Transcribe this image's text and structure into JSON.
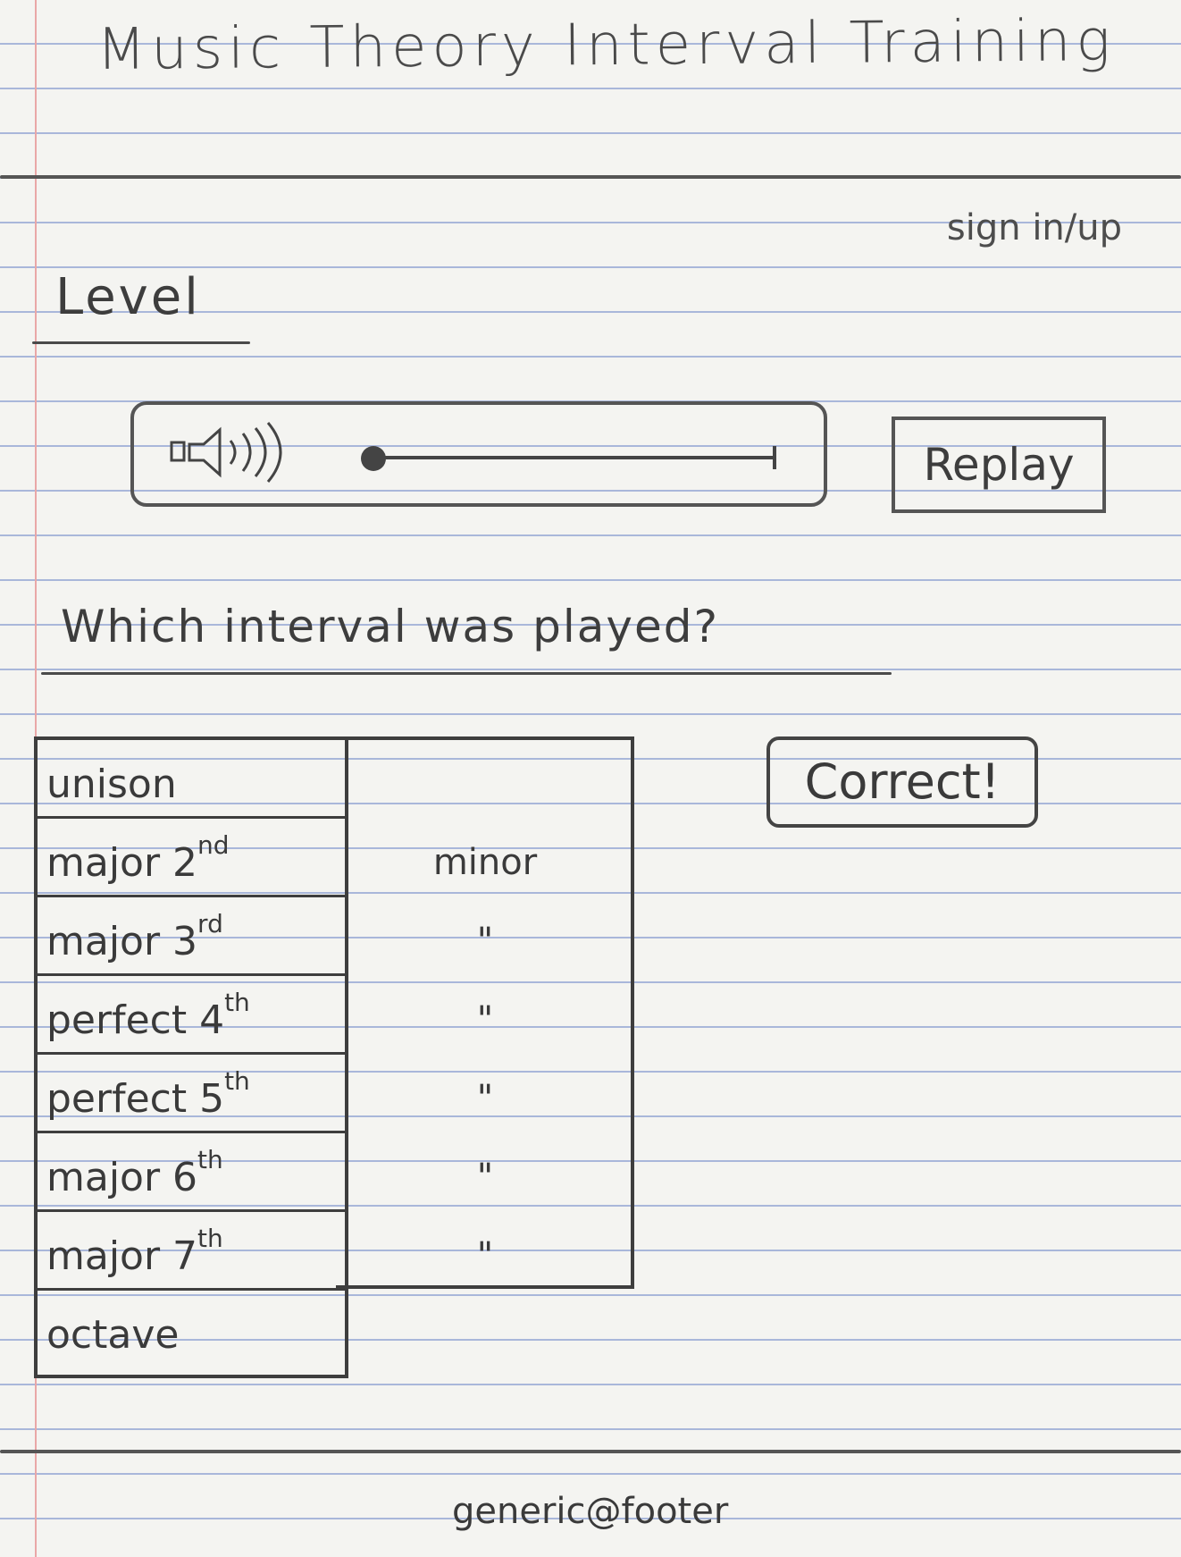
{
  "header": {
    "title": "Music Theory Interval Training",
    "sign_in_label": "sign in/up"
  },
  "level": {
    "label": "Level"
  },
  "player": {
    "speaker_icon": "speaker-icon",
    "replay_label": "Replay",
    "progress": 0.0
  },
  "quiz": {
    "question": "Which interval was played?",
    "intervals": [
      {
        "name": "unison",
        "alt": ""
      },
      {
        "name": "major 2",
        "ord": "nd",
        "alt": "minor"
      },
      {
        "name": "major 3",
        "ord": "rd",
        "alt": "\""
      },
      {
        "name": "perfect 4",
        "ord": "th",
        "alt": "\""
      },
      {
        "name": "perfect 5",
        "ord": "th",
        "alt": "\""
      },
      {
        "name": "major 6",
        "ord": "th",
        "alt": "\""
      },
      {
        "name": "major 7",
        "ord": "th",
        "alt": "\""
      },
      {
        "name": "octave",
        "alt": ""
      }
    ],
    "feedback": "Correct!"
  },
  "footer": {
    "text": "generic@footer"
  }
}
